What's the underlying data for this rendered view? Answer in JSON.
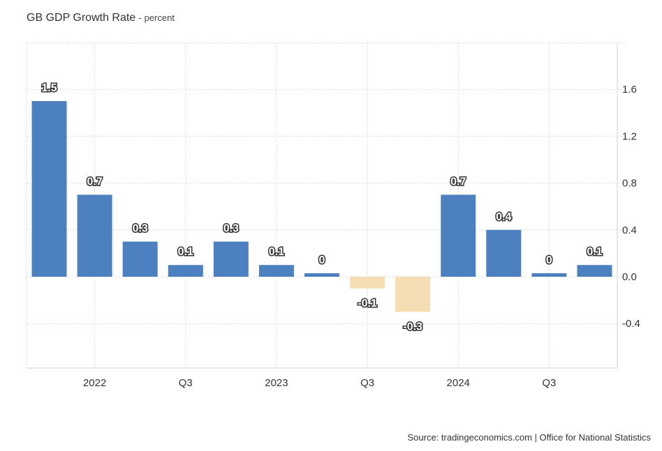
{
  "title": "GB GDP Growth Rate",
  "subtitle": "- percent",
  "source": "Source: tradingeconomics.com | Office for National Statistics",
  "colors": {
    "positive": "#4d80bf",
    "negative": "#f5deb3",
    "grid": "#d9d9d9"
  },
  "chart_data": {
    "type": "bar",
    "values": [
      1.5,
      0.7,
      0.3,
      0.1,
      0.3,
      0.1,
      0.0,
      -0.1,
      -0.3,
      0.7,
      0.4,
      0.0,
      0.1
    ],
    "labels": [
      "1.5",
      "0.7",
      "0.3",
      "0.1",
      "0.3",
      "0.1",
      "0",
      "-0.1",
      "-0.3",
      "0.7",
      "0.4",
      "0",
      "0.1"
    ],
    "x_ticks": [
      {
        "after_index": 0,
        "label": "2022"
      },
      {
        "after_index": 2,
        "label": "Q3"
      },
      {
        "after_index": 4,
        "label": "2023"
      },
      {
        "after_index": 6,
        "label": "Q3"
      },
      {
        "after_index": 8,
        "label": "2024"
      },
      {
        "after_index": 10,
        "label": "Q3"
      }
    ],
    "y_ticks": [
      {
        "value": 1.6,
        "label": "1.6"
      },
      {
        "value": 1.2,
        "label": "1.2"
      },
      {
        "value": 0.8,
        "label": "0.8"
      },
      {
        "value": 0.4,
        "label": "0.4"
      },
      {
        "value": 0.0,
        "label": "0.0"
      },
      {
        "value": -0.4,
        "label": "-0.4"
      }
    ],
    "ylim": [
      -0.8,
      2.0
    ],
    "grid": true,
    "legend": "none",
    "y_axis_position": "right"
  }
}
